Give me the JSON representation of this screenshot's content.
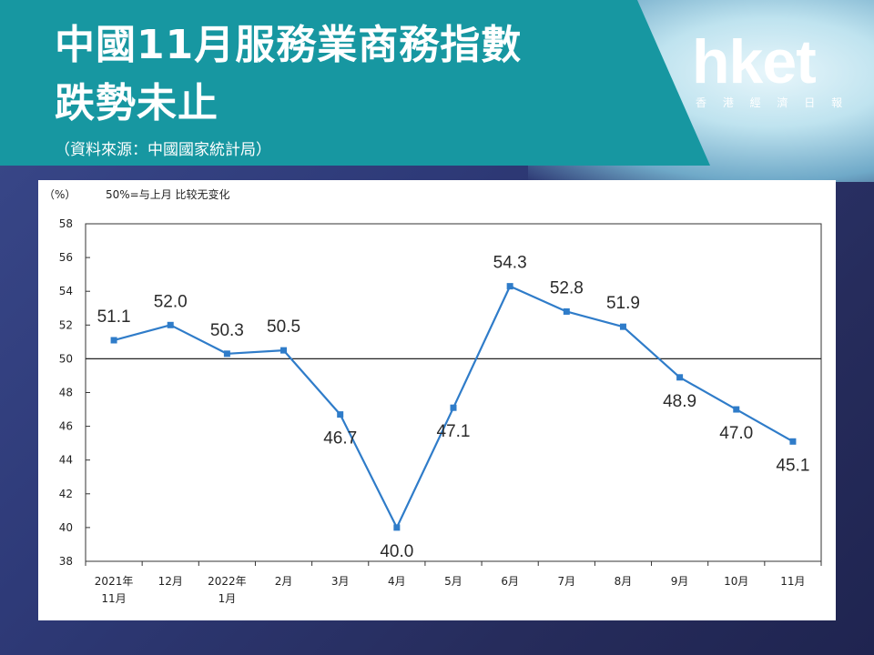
{
  "header": {
    "title_line1": "中國11月服務業商務指數",
    "title_line2": "跌勢未止",
    "source": "（資料來源：中國國家統計局）"
  },
  "logo": {
    "word": "hket",
    "subtitle": "香 港 經 濟 日 報"
  },
  "colors": {
    "banner": "#1797a1",
    "line": "#2f7cc9",
    "background": "#2e3a78"
  },
  "chart_data": {
    "type": "line",
    "unit_label": "（%）",
    "note": "50%=与上月 比较无变化",
    "categories": [
      [
        "2021年",
        "11月"
      ],
      [
        "12月"
      ],
      [
        "2022年",
        "1月"
      ],
      [
        "2月"
      ],
      [
        "3月"
      ],
      [
        "4月"
      ],
      [
        "5月"
      ],
      [
        "6月"
      ],
      [
        "7月"
      ],
      [
        "8月"
      ],
      [
        "9月"
      ],
      [
        "10月"
      ],
      [
        "11月"
      ]
    ],
    "values": [
      51.1,
      52.0,
      50.3,
      50.5,
      46.7,
      40.0,
      47.1,
      54.3,
      52.8,
      51.9,
      48.9,
      47.0,
      45.1
    ],
    "value_labels": [
      "51.1",
      "52.0",
      "50.3",
      "50.5",
      "46.7",
      "40.0",
      "47.1",
      "54.3",
      "52.8",
      "51.9",
      "48.9",
      "47.0",
      "45.1"
    ],
    "label_position": [
      "above",
      "above",
      "above",
      "above",
      "below",
      "below",
      "below",
      "above",
      "above",
      "above",
      "below",
      "below",
      "below"
    ],
    "yticks": [
      38,
      40,
      42,
      44,
      46,
      48,
      50,
      52,
      54,
      56,
      58
    ],
    "ylim": [
      38,
      58
    ],
    "reference_line": 50,
    "grid": false
  }
}
